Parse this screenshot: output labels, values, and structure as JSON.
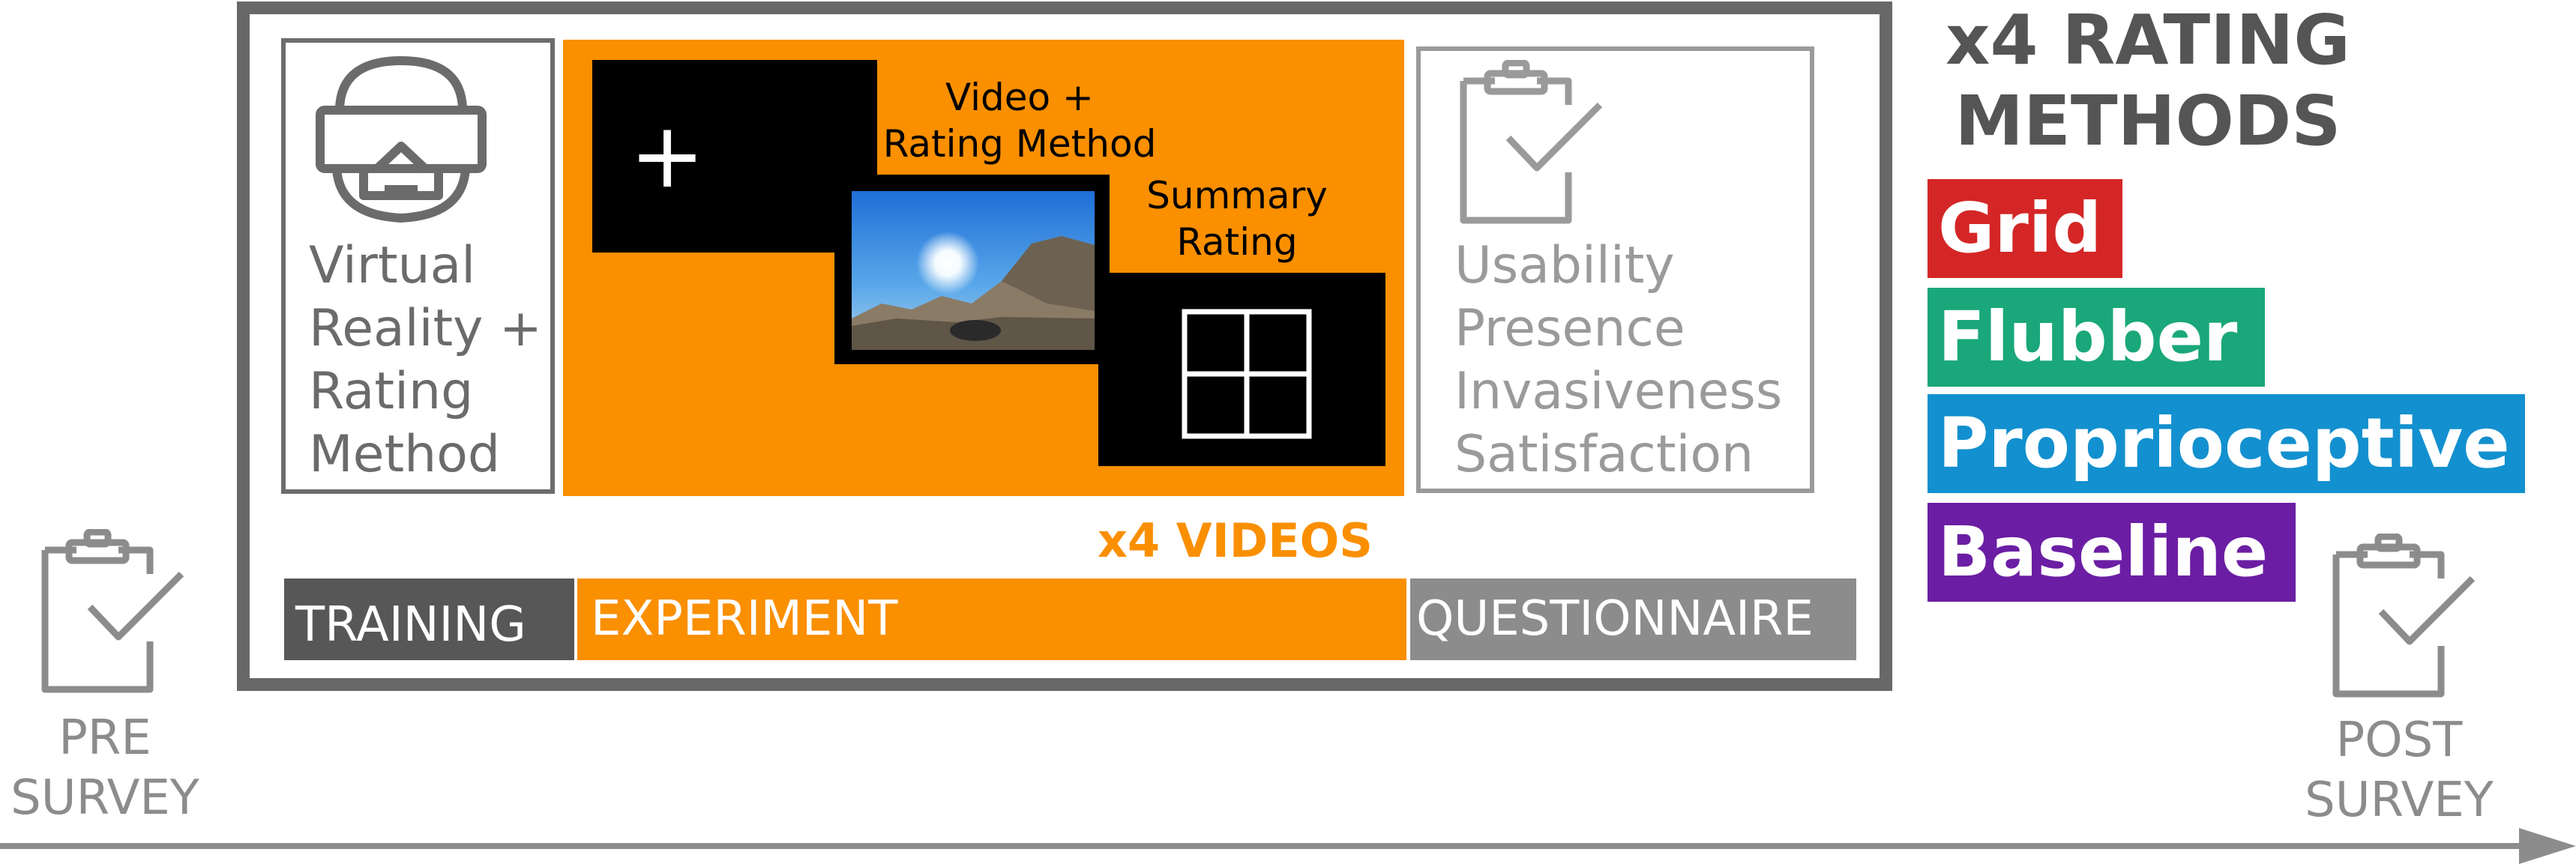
{
  "colors": {
    "frame": "#686868",
    "experiment_orange": "#fa8f00",
    "training_dark": "#575757",
    "questionnaire_gray": "#8c8c8c",
    "grid_red": "#d42626",
    "flubber_green": "#1aa77a",
    "proprioceptive_blue": "#1390cf",
    "baseline_purple": "#6b1ea3"
  },
  "training": {
    "icon": "vr-headset-icon",
    "label_lines": [
      "Virtual",
      "Reality +",
      "Rating",
      "Method"
    ]
  },
  "experiment": {
    "fixation_symbol": "+",
    "video_caption_lines": [
      "Video +",
      "Rating Method"
    ],
    "summary_caption_lines": [
      "Summary",
      "Rating"
    ],
    "video_thumbnail": "mountain-landscape-thumbnail",
    "summary_icon": "grid-icon",
    "repeat_label": "x4 VIDEOS"
  },
  "questionnaire": {
    "icon": "clipboard-check-icon",
    "items": [
      "Usability",
      "Presence",
      "Invasiveness",
      "Satisfaction"
    ]
  },
  "phases": {
    "training": "TRAINING",
    "experiment": "EXPERIMENT",
    "questionnaire": "QUESTIONNAIRE"
  },
  "rating_methods": {
    "title_lines": [
      "x4 RATING",
      "METHODS"
    ],
    "items": [
      {
        "label": "Grid",
        "color": "#d42626"
      },
      {
        "label": "Flubber",
        "color": "#1aa77a"
      },
      {
        "label": "Proprioceptive",
        "color": "#1390cf"
      },
      {
        "label": "Baseline",
        "color": "#6b1ea3"
      }
    ]
  },
  "surveys": {
    "pre_lines": [
      "PRE",
      "SURVEY"
    ],
    "post_lines": [
      "POST",
      "SURVEY"
    ]
  }
}
